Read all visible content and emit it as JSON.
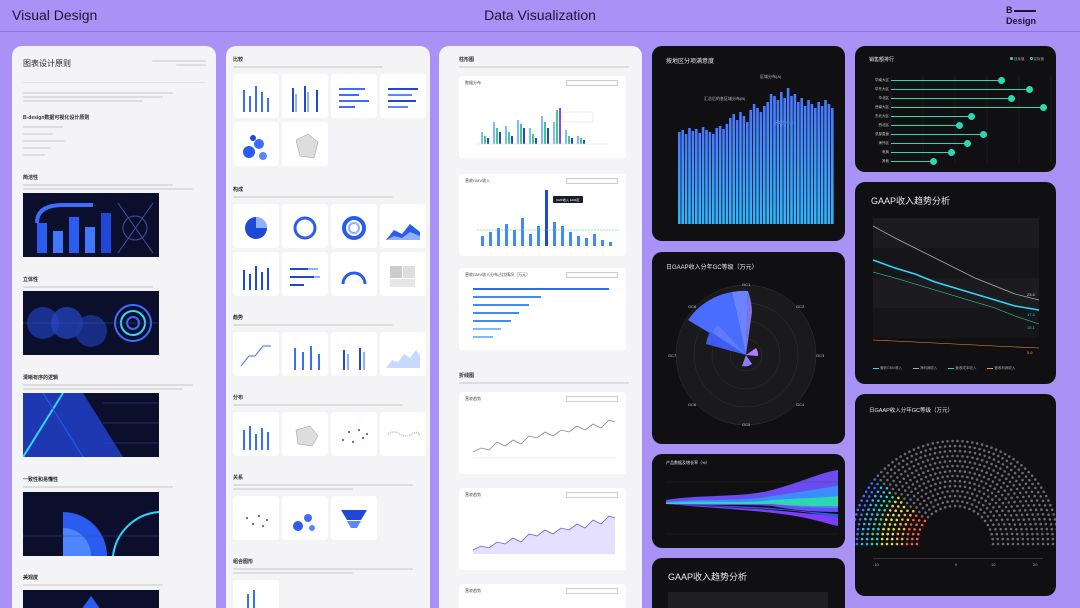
{
  "header": {
    "left_title": "Visual Design",
    "center_title": "Data Visualization",
    "logo_b": "B",
    "logo_design": "Design"
  },
  "col1": {
    "title": "图表设计原则",
    "intro_section": "B-design数据可视化设计原则",
    "sections": [
      "简洁性",
      "立体性",
      "清晰有序的逻辑",
      "一致性和易懂性",
      "美观度"
    ]
  },
  "col2": {
    "sections": [
      "比较",
      "构成",
      "趋势",
      "分布",
      "关系",
      "组合图形"
    ]
  },
  "col3": {
    "title": "柱形图",
    "cards": [
      "数据分布",
      "营收GMV收入",
      "营收GMV收入分布占比情况（万元）"
    ],
    "line_title": "折线图",
    "line_cards": [
      "营收趋势",
      "营收趋势",
      "营收趋势"
    ],
    "tooltip": "GMV收入  1234区"
  },
  "col4": {
    "bar_title": "按地区分项满意度",
    "bar_label1": "区域分布(A)",
    "bar_label2": "汇总后的各区域分布(B)",
    "bar_label3": "区域分布(C)",
    "rose_title": "日GAAP收入分年GC等级（万元）",
    "rose_axis": [
      "GC1",
      "GC2",
      "GC3",
      "GC4",
      "GC5",
      "GC6",
      "GC7",
      "GC8"
    ],
    "stream_title": "产品数据及增长率（%）",
    "trend_title": "GAAP收入趋势分析"
  },
  "col5": {
    "lollipop_title": "销售额排行",
    "lollipop_legend": [
      "目标值",
      "实际值"
    ],
    "lollipop_rows": [
      "华南大区",
      "华东大区",
      "华北区",
      "西南大区",
      "东北大区",
      "西北区",
      "总部直营",
      "海外区",
      "电商",
      "其他"
    ],
    "trend_title": "GAAP收入趋势分析",
    "trend_values": [
      "23.4",
      "17.3",
      "15.1",
      "5.6"
    ],
    "trend_legend": [
      "营收GMV收入",
      "净利润收入",
      "营收成本收入",
      "营收利润收入"
    ],
    "parl_title": "日GAAP收入分年GC等级（万元）",
    "parl_axis": [
      "-10",
      "0",
      "10",
      "20"
    ]
  }
}
